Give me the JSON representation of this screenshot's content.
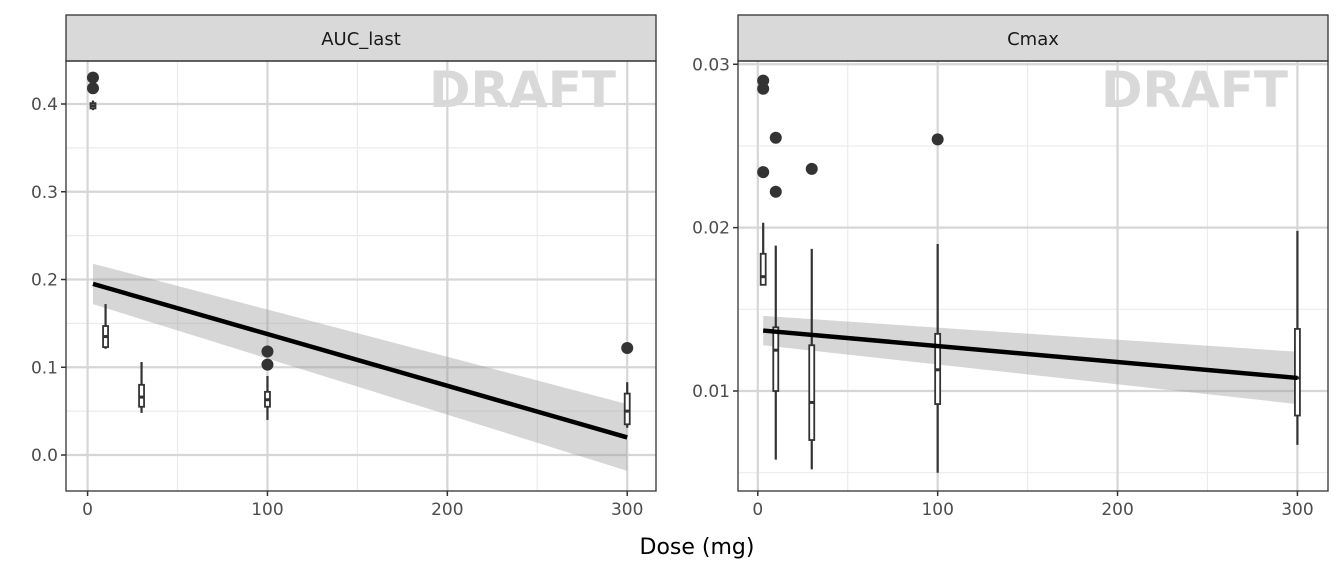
{
  "chart_data": [
    {
      "type": "boxplot",
      "title": "AUC_last",
      "watermark": "DRAFT",
      "xlim": [
        -12,
        316
      ],
      "ylim": [
        -0.041,
        0.449
      ],
      "yticks": [
        0.0,
        0.1,
        0.2,
        0.3,
        0.4
      ],
      "ytick_labels": [
        "0.0",
        "0.1",
        "0.2",
        "0.3",
        "0.4"
      ],
      "yminor": [
        0.05,
        0.15,
        0.25,
        0.35
      ],
      "xticks": [
        0,
        100,
        200,
        300
      ],
      "xtick_labels": [
        "0",
        "100",
        "200",
        "300"
      ],
      "xminor": [
        50,
        150,
        250
      ],
      "boxes": [
        {
          "x": 3,
          "lower": 0.393,
          "q1": 0.395,
          "median": 0.398,
          "q3": 0.401,
          "upper": 0.404,
          "outliers": [
            0.418,
            0.43
          ]
        },
        {
          "x": 10,
          "lower": 0.121,
          "q1": 0.123,
          "median": 0.135,
          "q3": 0.147,
          "upper": 0.172,
          "outliers": []
        },
        {
          "x": 30,
          "lower": 0.048,
          "q1": 0.055,
          "median": 0.066,
          "q3": 0.08,
          "upper": 0.106,
          "outliers": []
        },
        {
          "x": 100,
          "lower": 0.04,
          "q1": 0.055,
          "median": 0.063,
          "q3": 0.072,
          "upper": 0.09,
          "outliers": [
            0.103,
            0.118
          ]
        },
        {
          "x": 300,
          "lower": 0.031,
          "q1": 0.035,
          "median": 0.05,
          "q3": 0.07,
          "upper": 0.083,
          "outliers": [
            0.122
          ]
        }
      ],
      "fit": {
        "x": [
          3,
          300
        ],
        "y": [
          0.195,
          0.02
        ],
        "lower": [
          0.172,
          -0.018
        ],
        "upper": [
          0.218,
          0.058
        ]
      }
    },
    {
      "type": "boxplot",
      "title": "Cmax",
      "watermark": "DRAFT",
      "xlim": [
        -11,
        317
      ],
      "ylim": [
        0.00388,
        0.0302
      ],
      "yticks": [
        0.01,
        0.02,
        0.03
      ],
      "ytick_labels": [
        "0.01",
        "0.02",
        "0.03"
      ],
      "yminor": [
        0.005,
        0.015,
        0.025
      ],
      "xticks": [
        0,
        100,
        200,
        300
      ],
      "xtick_labels": [
        "0",
        "100",
        "200",
        "300"
      ],
      "xminor": [
        50,
        150,
        250
      ],
      "boxes": [
        {
          "x": 3,
          "lower": 0.0165,
          "q1": 0.0165,
          "median": 0.017,
          "q3": 0.0184,
          "upper": 0.0203,
          "outliers": [
            0.0234,
            0.0285,
            0.029
          ]
        },
        {
          "x": 10,
          "lower": 0.0058,
          "q1": 0.01,
          "median": 0.0125,
          "q3": 0.0139,
          "upper": 0.0189,
          "outliers": [
            0.0222,
            0.0255
          ]
        },
        {
          "x": 30,
          "lower": 0.0052,
          "q1": 0.007,
          "median": 0.0093,
          "q3": 0.0128,
          "upper": 0.0187,
          "outliers": [
            0.0236
          ]
        },
        {
          "x": 100,
          "lower": 0.005,
          "q1": 0.0092,
          "median": 0.0113,
          "q3": 0.0135,
          "upper": 0.019,
          "outliers": [
            0.0254
          ]
        },
        {
          "x": 300,
          "lower": 0.0067,
          "q1": 0.0085,
          "median": 0.0108,
          "q3": 0.0138,
          "upper": 0.0198,
          "outliers": []
        }
      ],
      "fit": {
        "x": [
          3,
          300
        ],
        "y": [
          0.0137,
          0.0108
        ],
        "lower": [
          0.0128,
          0.0092
        ],
        "upper": [
          0.0146,
          0.0124
        ]
      }
    }
  ],
  "xlabel": "Dose (mg)"
}
